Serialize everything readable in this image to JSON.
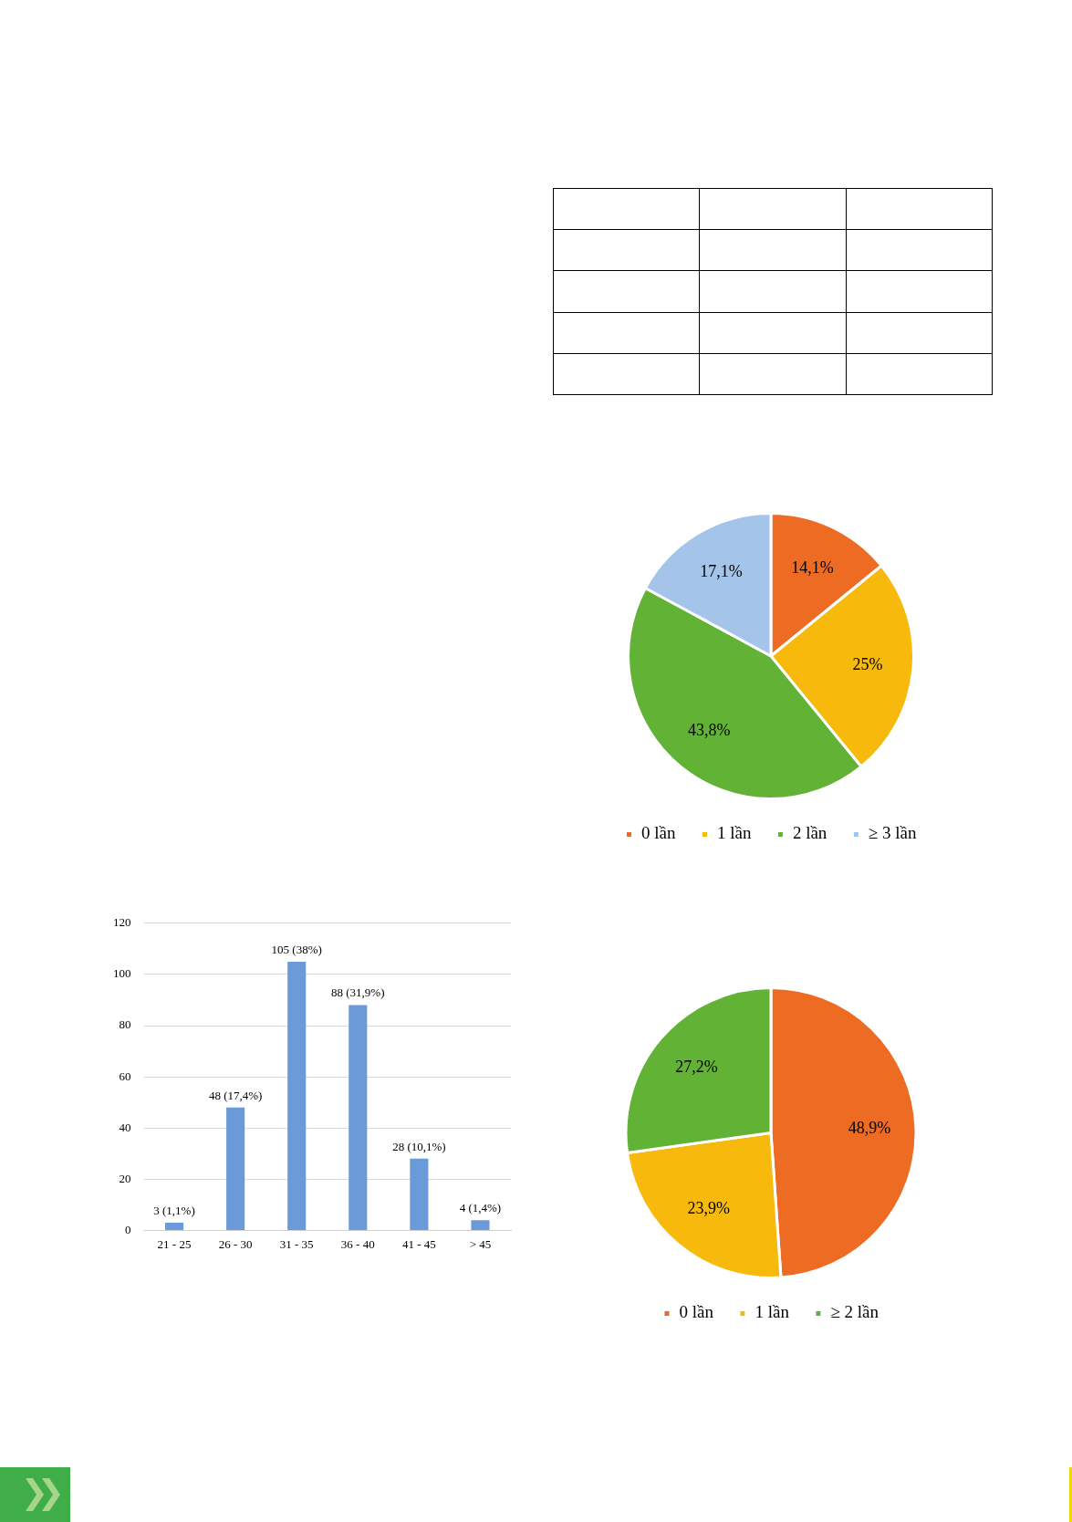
{
  "chart_data": [
    {
      "type": "pie",
      "categories": [
        "0 lần",
        "1 lần",
        "2 lần",
        "≥ 3 lần"
      ],
      "values": [
        14.1,
        25,
        43.8,
        17.1
      ],
      "colors": [
        "#ed6b23",
        "#f7b90b",
        "#62b236",
        "#a4c4e9"
      ],
      "value_labels": [
        "14,1%",
        "25%",
        "43,8%",
        "17,1%"
      ],
      "legend": "bottom"
    },
    {
      "type": "bar",
      "categories": [
        "21 - 25",
        "26 - 30",
        "31 - 35",
        "36 - 40",
        "41 - 45",
        "> 45"
      ],
      "values": [
        3,
        48,
        105,
        88,
        28,
        4
      ],
      "color": "#6a9ad8",
      "value_labels": [
        "3 (1,1%)",
        "48 (17,4%)",
        "105 (38%)",
        "88 (31,9%)",
        "28 (10,1%)",
        "4 (1,4%)"
      ],
      "ylim": [
        0,
        120
      ],
      "yticks": [
        0,
        20,
        40,
        60,
        80,
        100,
        120
      ],
      "grid": "y",
      "legend": false
    },
    {
      "type": "pie",
      "categories": [
        "0 lần",
        "1 lần",
        "≥ 2 lần"
      ],
      "values": [
        48.9,
        23.9,
        27.2
      ],
      "colors": [
        "#ed6b23",
        "#f7b90b",
        "#62b236"
      ],
      "value_labels": [
        "48,9%",
        "23,9%",
        "27,2%"
      ],
      "legend": "bottom"
    }
  ]
}
